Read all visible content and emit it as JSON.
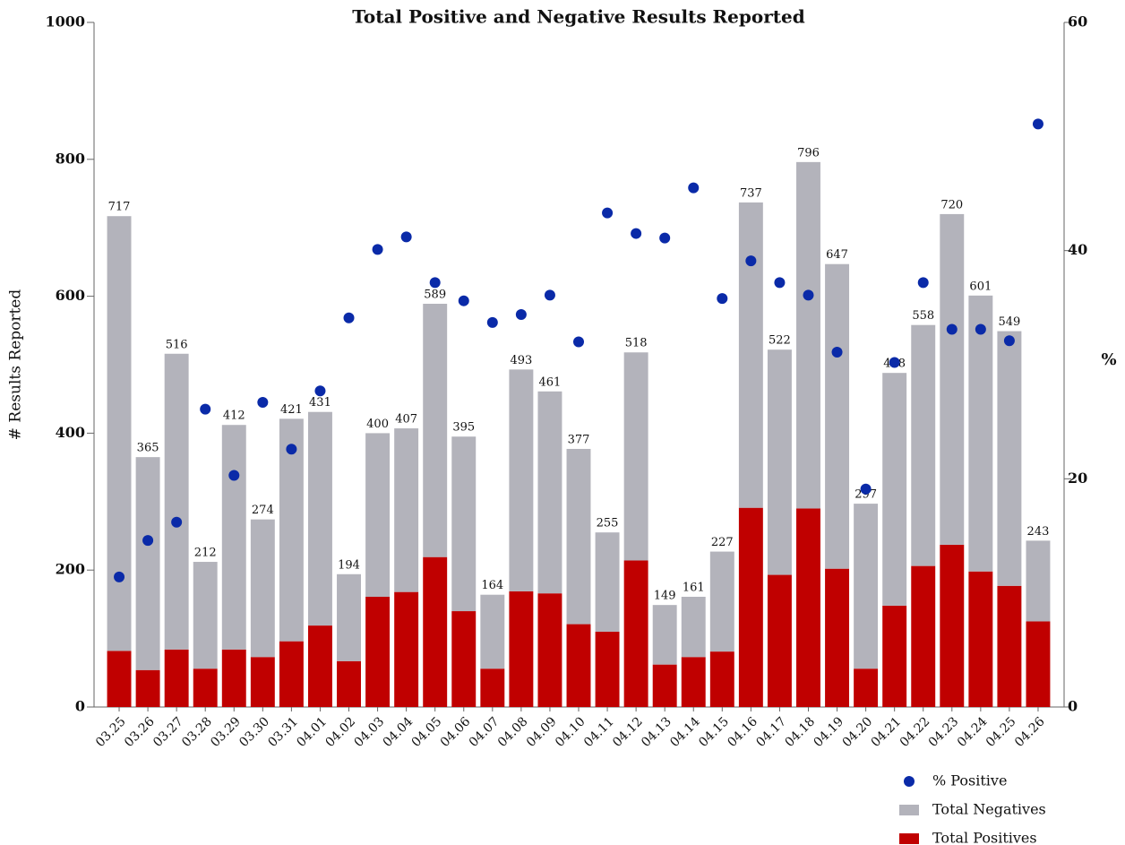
{
  "chart_data": {
    "type": "bar",
    "title": "Total Positive and Negative Results Reported",
    "ylabel": "# Results Reported",
    "y2label": "%",
    "categories": [
      "03.25",
      "03.26",
      "03.27",
      "03.28",
      "03.29",
      "03.30",
      "03.31",
      "04.01",
      "04.02",
      "04.03",
      "04.04",
      "04.05",
      "04.06",
      "04.07",
      "04.08",
      "04.09",
      "04.10",
      "04.11",
      "04.12",
      "04.13",
      "04.14",
      "04.15",
      "04.16",
      "04.17",
      "04.18",
      "04.19",
      "04.20",
      "04.21",
      "04.22",
      "04.23",
      "04.24",
      "04.25",
      "04.26"
    ],
    "series": [
      {
        "name": "Total Positives",
        "color": "#c00000",
        "type": "bar",
        "values": [
          82,
          54,
          84,
          56,
          84,
          73,
          96,
          119,
          67,
          161,
          168,
          219,
          140,
          56,
          169,
          166,
          121,
          110,
          214,
          62,
          73,
          81,
          291,
          193,
          290,
          202,
          56,
          148,
          206,
          237,
          198,
          177,
          125
        ]
      },
      {
        "name": "Total Negatives",
        "color": "#b3b3bb",
        "type": "bar",
        "values": [
          635,
          311,
          432,
          156,
          328,
          201,
          325,
          312,
          127,
          239,
          239,
          370,
          255,
          108,
          324,
          295,
          256,
          145,
          304,
          87,
          88,
          146,
          446,
          329,
          506,
          445,
          241,
          340,
          352,
          483,
          403,
          372,
          118
        ]
      },
      {
        "name": "% Positive",
        "color": "#0a2aa8",
        "type": "scatter",
        "axis": "y2",
        "values": [
          11.4,
          14.6,
          16.2,
          26.1,
          20.3,
          26.7,
          22.6,
          27.7,
          34.1,
          40.1,
          41.2,
          37.2,
          35.6,
          33.7,
          34.4,
          36.1,
          32.0,
          43.3,
          41.5,
          41.1,
          45.5,
          35.8,
          39.1,
          37.2,
          36.1,
          31.1,
          19.1,
          30.2,
          37.2,
          33.1,
          33.1,
          32.1,
          51.1
        ]
      }
    ],
    "totals": [
      717,
      365,
      516,
      212,
      412,
      274,
      421,
      431,
      194,
      400,
      407,
      589,
      395,
      164,
      493,
      461,
      377,
      255,
      518,
      149,
      161,
      227,
      737,
      522,
      796,
      647,
      297,
      488,
      558,
      720,
      601,
      549,
      243
    ],
    "ylim": [
      0,
      1000
    ],
    "yticks": [
      0,
      200,
      400,
      600,
      800,
      1000
    ],
    "y2lim": [
      0,
      60
    ],
    "y2ticks": [
      0,
      20,
      40,
      60
    ],
    "grid": false,
    "legend": "bottom-right"
  }
}
